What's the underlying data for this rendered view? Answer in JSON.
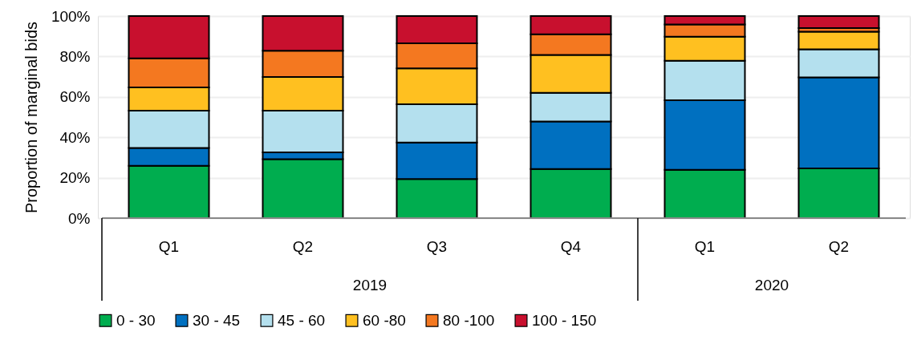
{
  "chart_data": {
    "type": "bar",
    "stacked": true,
    "ylabel": "Proportion of marginal bids",
    "categories": [
      "Q1",
      "Q2",
      "Q3",
      "Q4",
      "Q1",
      "Q2"
    ],
    "series": [
      {
        "name": "0 - 30",
        "color": "#00ad4f",
        "values": [
          25.9,
          29.2,
          19.3,
          24.3,
          23.9,
          24.6
        ]
      },
      {
        "name": "30 - 45",
        "color": "#0070c0",
        "values": [
          8.8,
          3.3,
          18.1,
          23.5,
          34.4,
          45.0
        ]
      },
      {
        "name": "45 - 60",
        "color": "#b4e0ee",
        "values": [
          18.5,
          20.7,
          18.9,
          14.2,
          19.6,
          13.9
        ]
      },
      {
        "name": "60 -80",
        "color": "#ffc020",
        "values": [
          11.5,
          16.6,
          17.8,
          18.8,
          11.9,
          8.8
        ]
      },
      {
        "name": "80 -100",
        "color": "#f47820",
        "values": [
          14.4,
          13.0,
          12.4,
          10.2,
          6.0,
          1.7
        ]
      },
      {
        "name": "100 - 150",
        "color": "#c8102e",
        "values": [
          20.9,
          17.2,
          13.5,
          9.0,
          4.2,
          6.0
        ]
      }
    ],
    "ylim": [
      0,
      100
    ],
    "yticks": [
      {
        "value": 0,
        "label": "0%"
      },
      {
        "value": 20,
        "label": "20%"
      },
      {
        "value": 40,
        "label": "40%"
      },
      {
        "value": 60,
        "label": "60%"
      },
      {
        "value": 80,
        "label": "80%"
      },
      {
        "value": 100,
        "label": "100%"
      }
    ],
    "grid": "y",
    "legend": "bottom",
    "annotations": [
      "2019",
      "2020"
    ]
  }
}
